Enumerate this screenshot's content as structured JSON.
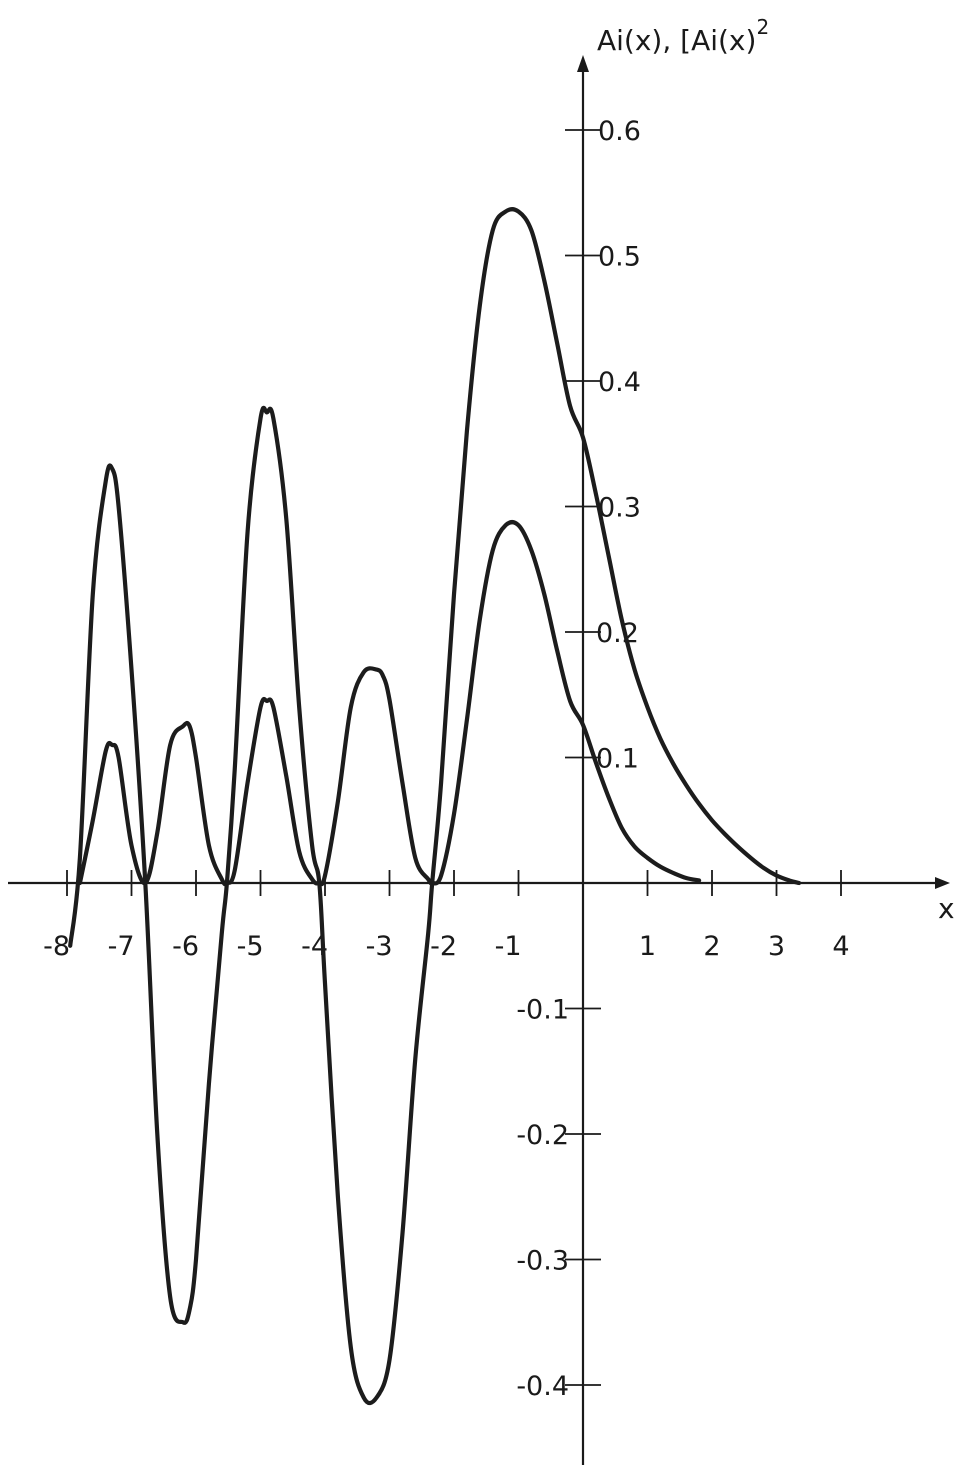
{
  "chart_data": {
    "type": "line",
    "title": "",
    "xlabel": "x",
    "ylabel": "Ai(x), [Ai(x)²",
    "ylabel_parts": {
      "main": "Ai(x), [Ai(x)",
      "sup": "2"
    },
    "xlim": [
      -8,
      4
    ],
    "ylim": [
      -0.45,
      0.6
    ],
    "grid": false,
    "legend": "none",
    "x_ticks": [
      {
        "value": -8,
        "label": "-8"
      },
      {
        "value": -7,
        "label": "-7"
      },
      {
        "value": -6,
        "label": "-6"
      },
      {
        "value": -5,
        "label": "-5"
      },
      {
        "value": -4,
        "label": "-4"
      },
      {
        "value": -3,
        "label": "-3"
      },
      {
        "value": -2,
        "label": "-2"
      },
      {
        "value": -1,
        "label": "-1"
      },
      {
        "value": 1,
        "label": "1"
      },
      {
        "value": 2,
        "label": "2"
      },
      {
        "value": 3,
        "label": "3"
      },
      {
        "value": 4,
        "label": "4"
      }
    ],
    "y_ticks": [
      {
        "value": 0.6,
        "label": "0.6"
      },
      {
        "value": 0.5,
        "label": "0.5"
      },
      {
        "value": 0.4,
        "label": "0.4"
      },
      {
        "value": 0.3,
        "label": "0.3"
      },
      {
        "value": 0.2,
        "label": "0.2"
      },
      {
        "value": 0.1,
        "label": "0.1"
      },
      {
        "value": -0.1,
        "label": "-0.1"
      },
      {
        "value": -0.2,
        "label": "-0.2"
      },
      {
        "value": -0.3,
        "label": "-0.3"
      },
      {
        "value": -0.4,
        "label": "-0.4"
      }
    ],
    "series": [
      {
        "x": [
          -7.95,
          -7.8,
          -7.6,
          -7.4,
          -7.3,
          -7.2,
          -7.0,
          -6.786,
          -6.6,
          -6.4,
          -6.2,
          -6.1,
          -6.0,
          -5.8,
          -5.6,
          -5.521,
          -5.4,
          -5.2,
          -5.0,
          -4.9,
          -4.8,
          -4.6,
          -4.4,
          -4.2,
          -4.088,
          -4.0,
          -3.8,
          -3.6,
          -3.4,
          -3.2,
          -3.0,
          -2.8,
          -2.6,
          -2.4,
          -2.338,
          -2.2,
          -2.0,
          -1.8,
          -1.6,
          -1.4,
          -1.2,
          -1.0,
          -0.8,
          -0.6,
          -0.4,
          -0.2,
          0.0,
          0.2,
          0.4,
          0.6,
          0.8,
          1.0,
          1.2,
          1.4,
          1.6,
          1.8,
          2.0,
          2.2,
          2.4,
          2.6,
          2.8,
          3.0,
          3.2,
          3.35
        ],
        "values": [
          -0.05,
          0.02,
          0.23,
          0.32,
          0.33,
          0.3,
          0.17,
          0.0,
          -0.2,
          -0.33,
          -0.35,
          -0.34,
          -0.3,
          -0.16,
          -0.04,
          0.0,
          0.09,
          0.28,
          0.37,
          0.375,
          0.37,
          0.29,
          0.14,
          0.03,
          0.0,
          -0.08,
          -0.25,
          -0.37,
          -0.41,
          -0.41,
          -0.38,
          -0.28,
          -0.14,
          -0.04,
          0.0,
          0.08,
          0.23,
          0.36,
          0.46,
          0.52,
          0.535,
          0.535,
          0.52,
          0.48,
          0.43,
          0.38,
          0.355,
          0.31,
          0.26,
          0.21,
          0.17,
          0.14,
          0.115,
          0.095,
          0.078,
          0.063,
          0.05,
          0.039,
          0.029,
          0.02,
          0.012,
          0.006,
          0.002,
          0.0
        ]
      },
      {
        "x": [
          -7.8,
          -7.6,
          -7.4,
          -7.3,
          -7.2,
          -7.0,
          -6.786,
          -6.6,
          -6.4,
          -6.2,
          -6.1,
          -6.0,
          -5.8,
          -5.6,
          -5.521,
          -5.4,
          -5.2,
          -5.0,
          -4.9,
          -4.8,
          -4.6,
          -4.4,
          -4.2,
          -4.088,
          -4.0,
          -3.8,
          -3.6,
          -3.4,
          -3.2,
          -3.1,
          -3.0,
          -2.8,
          -2.6,
          -2.4,
          -2.338,
          -2.2,
          -2.0,
          -1.8,
          -1.6,
          -1.4,
          -1.2,
          -1.0,
          -0.8,
          -0.6,
          -0.4,
          -0.2,
          0.0,
          0.2,
          0.4,
          0.6,
          0.8,
          1.0,
          1.2,
          1.4,
          1.6,
          1.8
        ],
        "values": [
          0.0,
          0.05,
          0.105,
          0.11,
          0.1,
          0.03,
          0.0,
          0.04,
          0.11,
          0.125,
          0.125,
          0.1,
          0.03,
          0.003,
          0.0,
          0.01,
          0.08,
          0.14,
          0.145,
          0.14,
          0.085,
          0.025,
          0.003,
          0.0,
          0.006,
          0.065,
          0.14,
          0.168,
          0.17,
          0.165,
          0.146,
          0.08,
          0.02,
          0.003,
          0.0,
          0.006,
          0.055,
          0.13,
          0.21,
          0.265,
          0.285,
          0.285,
          0.265,
          0.23,
          0.185,
          0.145,
          0.126,
          0.096,
          0.068,
          0.044,
          0.029,
          0.02,
          0.013,
          0.008,
          0.004,
          0.002
        ]
      }
    ]
  }
}
